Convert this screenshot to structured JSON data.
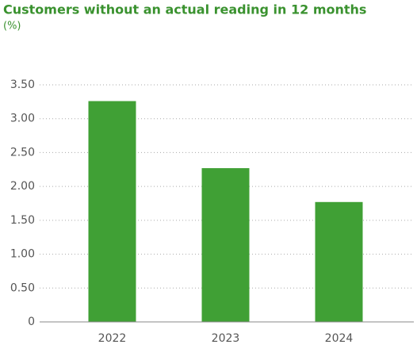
{
  "chart_data": {
    "type": "bar",
    "title": "Customers without an actual reading in 12 months",
    "subtitle": "(%)",
    "categories": [
      "2022",
      "2023",
      "2024"
    ],
    "values": [
      3.26,
      2.27,
      1.77
    ],
    "color": "#40a035",
    "ylim": [
      0,
      3.5
    ],
    "yticks": [
      0,
      {
        "value": 0.5,
        "label": "0.50"
      },
      {
        "value": 1,
        "label": "1.00"
      },
      {
        "value": 1.5,
        "label": "1.50"
      },
      {
        "value": 2,
        "label": "2.00"
      },
      {
        "value": 2.5,
        "label": "2.50"
      },
      {
        "value": 3,
        "label": "3.00"
      },
      {
        "value": 3.5,
        "label": "3.50"
      }
    ],
    "grid": true
  }
}
